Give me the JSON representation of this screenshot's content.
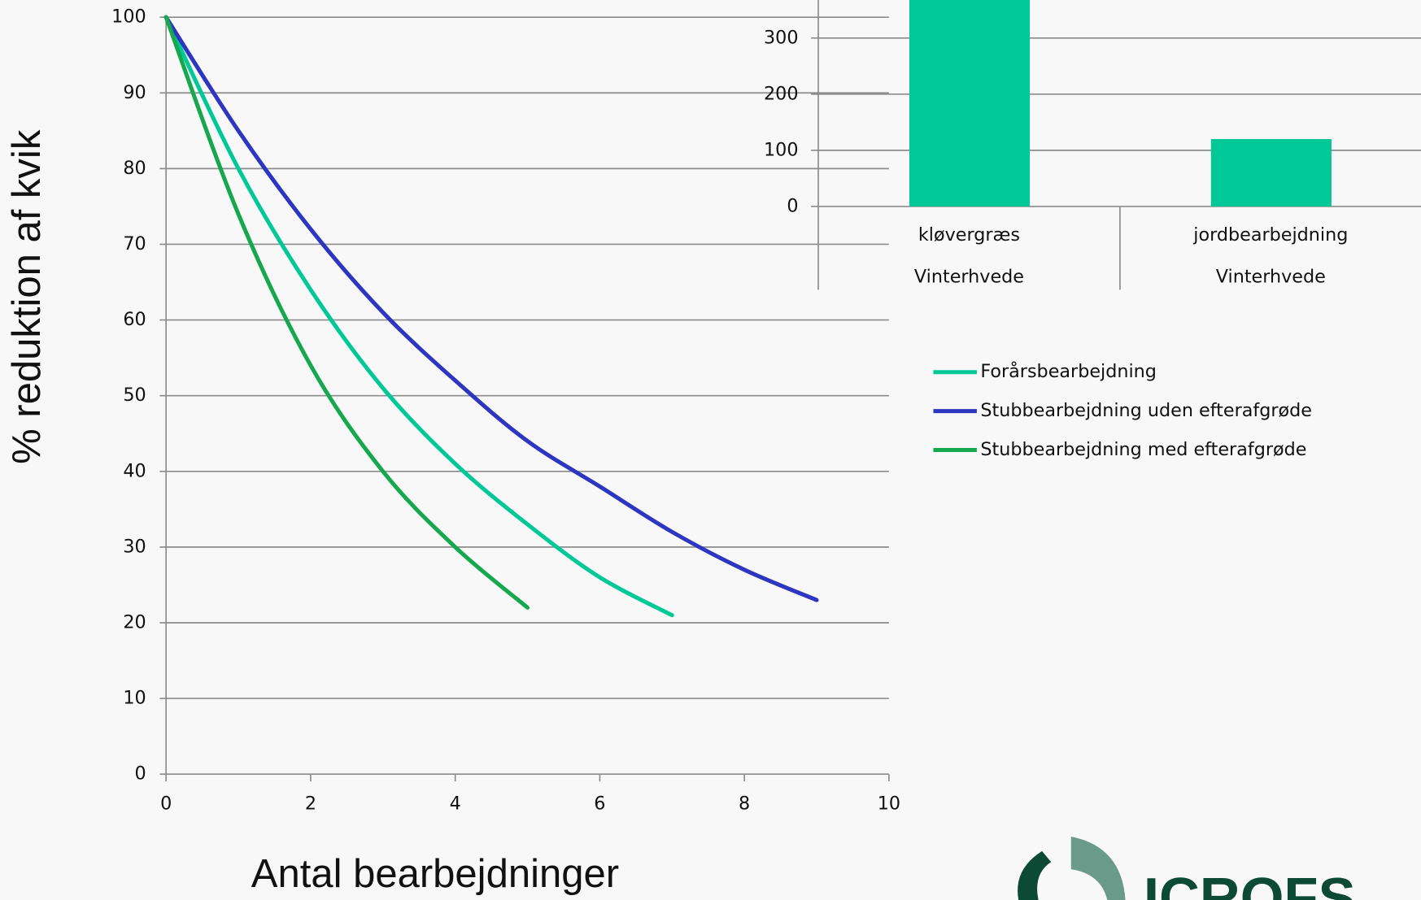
{
  "chart_data": [
    {
      "type": "line",
      "ylabel": "% reduktion af kvik",
      "xlabel": "Antal bearbejdninger",
      "x": [
        0,
        1,
        2,
        3,
        4,
        5,
        6,
        7,
        8,
        9
      ],
      "series": [
        {
          "name": "Forårsbearbejdning",
          "color": "#00c896",
          "values": [
            100,
            80,
            64,
            51,
            41,
            33,
            26,
            21,
            null,
            null
          ]
        },
        {
          "name": "Stubbearbejdning uden efterafgrøde",
          "color": "#2e35c0",
          "values": [
            100,
            85,
            72,
            61,
            52,
            44,
            38,
            32,
            27,
            23
          ]
        },
        {
          "name": "Stubbearbejdning med efterafgrøde",
          "color": "#16a84e",
          "values": [
            100,
            74,
            54,
            40,
            30,
            22,
            null,
            null,
            null,
            null
          ]
        }
      ],
      "xlim": [
        0,
        10
      ],
      "xticks": [
        0,
        2,
        4,
        6,
        8,
        10
      ],
      "ylim": [
        0,
        100
      ],
      "yticks": [
        0,
        10,
        20,
        30,
        40,
        50,
        60,
        70,
        80,
        90,
        100
      ],
      "grid": true,
      "legend": "right"
    },
    {
      "type": "bar",
      "categories": [
        "kløvergræs",
        "jordbearbejdning"
      ],
      "groups": [
        "Vinterhvede",
        "Vinterhvede"
      ],
      "values": [
        400,
        120
      ],
      "color": "#00c896",
      "ylim": [
        0,
        400
      ],
      "yticks": [
        0,
        100,
        200,
        300
      ],
      "grid": true
    }
  ],
  "logo": "ICROFS"
}
